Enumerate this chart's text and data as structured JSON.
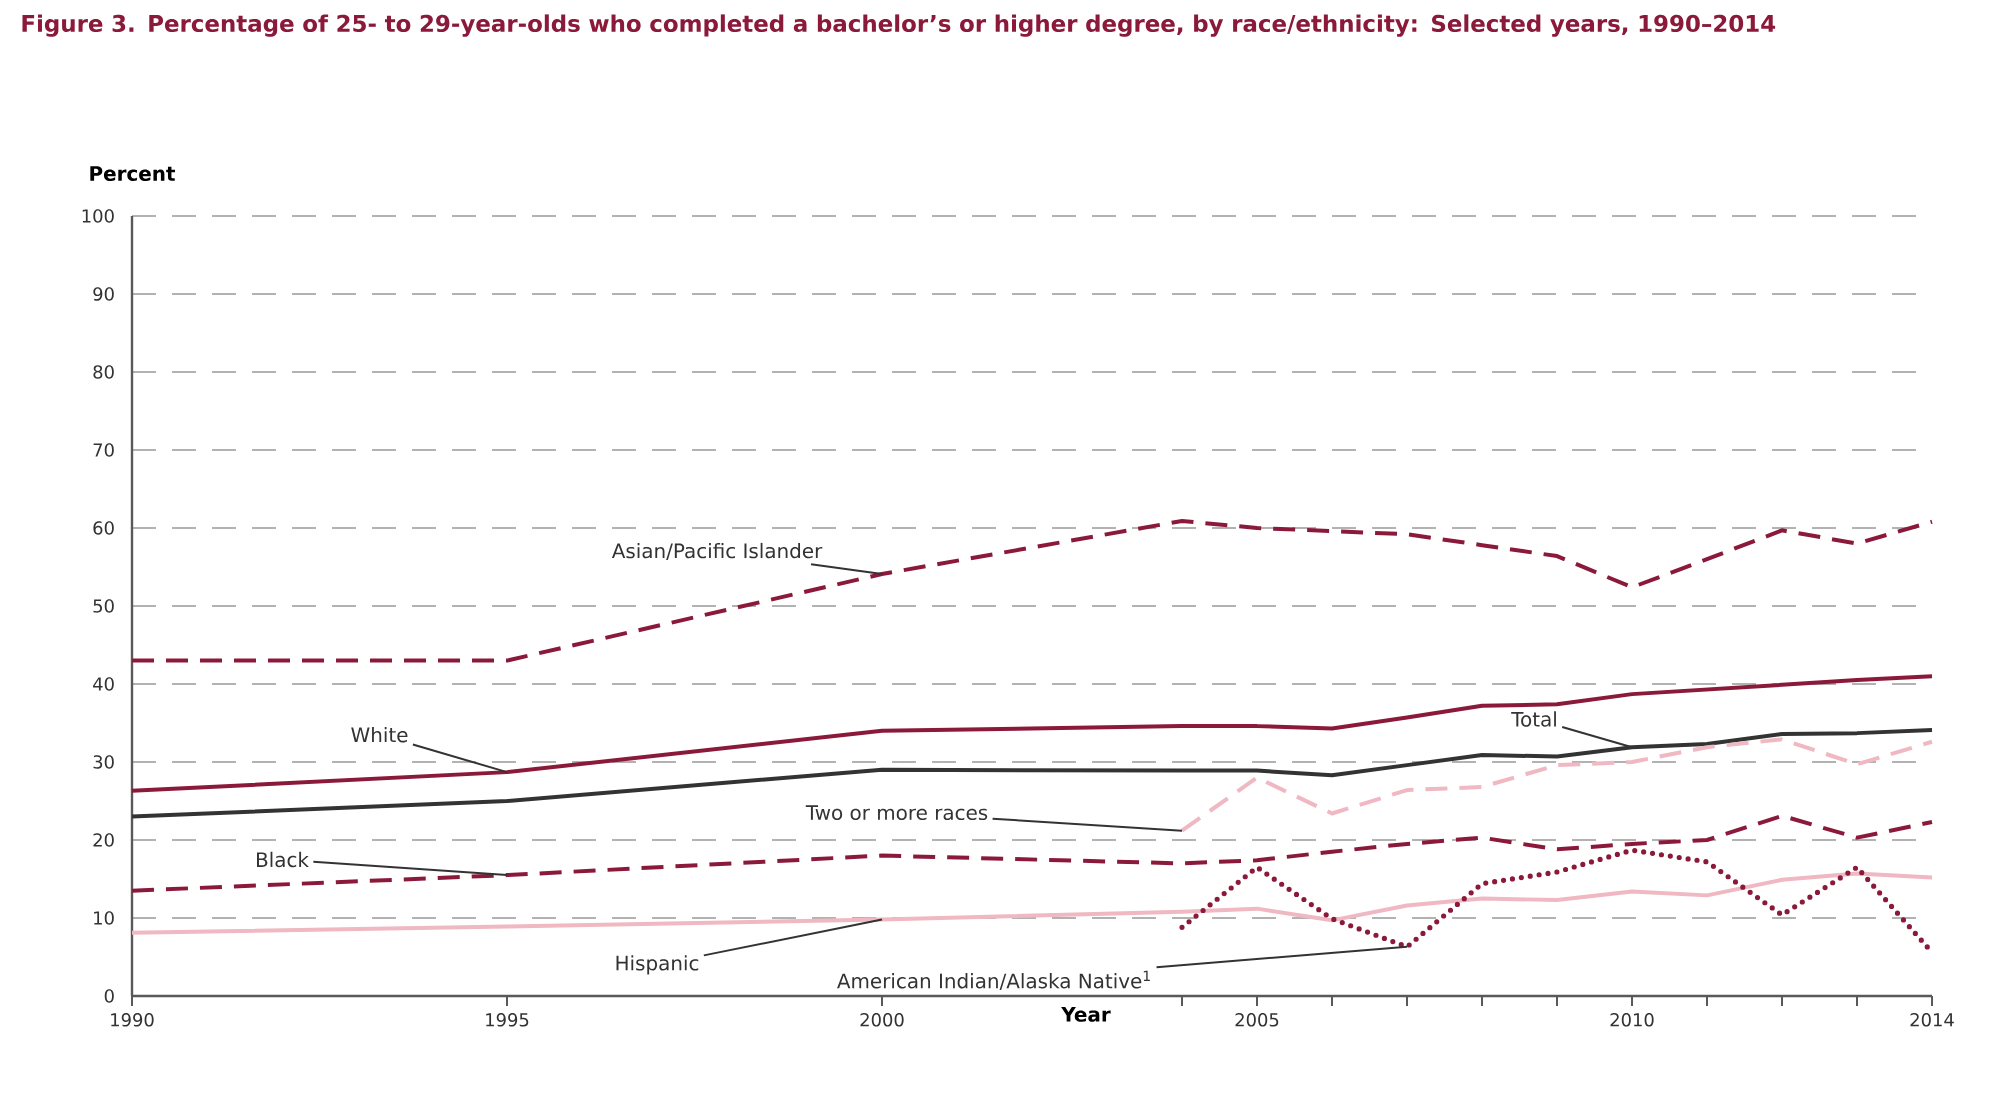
{
  "chart_data": {
    "type": "line",
    "title": "Figure 3.  Percentage of 25- to 29-year-olds who completed a bachelor’s or higher degree, by race/ethnicity: Selected years, 1990–2014",
    "xlabel": "Year",
    "ylabel": "Percent",
    "xlim": [
      1990,
      2014
    ],
    "ylim": [
      0,
      100
    ],
    "xticks": [
      1990,
      1995,
      2000,
      {
        "value": 2004,
        "label": null
      },
      2005,
      {
        "value": 2006,
        "label": null
      },
      {
        "value": 2007,
        "label": null
      },
      {
        "value": 2008,
        "label": null
      },
      {
        "value": 2009,
        "label": null
      },
      2010,
      {
        "value": 2011,
        "label": null
      },
      {
        "value": 2012,
        "label": null
      },
      {
        "value": 2013,
        "label": null
      },
      2014
    ],
    "yticks": [
      0,
      10,
      20,
      30,
      40,
      50,
      60,
      70,
      80,
      90,
      100
    ],
    "grid": "y",
    "marker": "none",
    "series": [
      {
        "name": "Total",
        "color": "#333333",
        "line_style": "solid",
        "x": [
          1990,
          1995,
          2000,
          2004,
          2005,
          2006,
          2007,
          2008,
          2009,
          2010,
          2011,
          2012,
          2013,
          2014
        ],
        "values": [
          23,
          25,
          29,
          28.9,
          28.9,
          28.3,
          29.6,
          30.9,
          30.7,
          31.9,
          32.3,
          33.6,
          33.7,
          34.1
        ]
      },
      {
        "name": "White",
        "color": "#8b1a3a",
        "line_style": "solid",
        "x": [
          1990,
          1995,
          2000,
          2004,
          2005,
          2006,
          2007,
          2008,
          2009,
          2010,
          2011,
          2012,
          2013,
          2014
        ],
        "values": [
          26.3,
          28.7,
          34,
          34.6,
          34.6,
          34.3,
          35.7,
          37.2,
          37.4,
          38.7,
          39.3,
          39.9,
          40.5,
          41
        ]
      },
      {
        "name": "Black",
        "color": "#8b1a3a",
        "line_style": "dashed",
        "x": [
          1990,
          1995,
          2000,
          2004,
          2005,
          2006,
          2007,
          2008,
          2009,
          2010,
          2011,
          2012,
          2013,
          2014
        ],
        "values": [
          13.5,
          15.5,
          18,
          17,
          17.4,
          18.5,
          19.5,
          20.3,
          18.8,
          19.5,
          20,
          23.1,
          20.3,
          22.3
        ]
      },
      {
        "name": "Hispanic",
        "color": "#efb8c2",
        "line_style": "solid",
        "x": [
          1990,
          1995,
          2000,
          2004,
          2005,
          2006,
          2007,
          2008,
          2009,
          2010,
          2011,
          2012,
          2013,
          2014
        ],
        "values": [
          8.1,
          8.9,
          9.8,
          10.8,
          11.2,
          9.7,
          11.6,
          12.5,
          12.3,
          13.4,
          12.9,
          14.9,
          15.7,
          15.2
        ]
      },
      {
        "name": "Asian/Pacific Islander",
        "color": "#8b1a3a",
        "line_style": "dashed",
        "x": [
          1990,
          1995,
          2000,
          2004,
          2005,
          2006,
          2007,
          2008,
          2009,
          2010,
          2011,
          2012,
          2013,
          2014
        ],
        "values": [
          43,
          43,
          54.1,
          60.9,
          60,
          59.6,
          59.2,
          57.8,
          56.4,
          52.4,
          56,
          59.7,
          58,
          60.8
        ]
      },
      {
        "name": "American Indian/Alaska Native$^{1}$",
        "color": "#8b1a3a",
        "line_style": "dotted",
        "x": [
          2004,
          2005,
          2006,
          2007,
          2008,
          2009,
          2010,
          2011,
          2012,
          2013,
          2014
        ],
        "values": [
          8.8,
          16.5,
          9.9,
          6.3,
          14.4,
          15.9,
          18.7,
          17.2,
          10.4,
          16.5,
          5.6
        ]
      },
      {
        "name": "Two or more races",
        "color": "#efb8c2",
        "line_style": "dashed",
        "x": [
          2004,
          2005,
          2006,
          2007,
          2008,
          2009,
          2010,
          2011,
          2012,
          2013,
          2014
        ],
        "values": [
          21.2,
          28,
          23.4,
          26.4,
          26.8,
          29.6,
          30,
          31.9,
          32.9,
          29.7,
          32.6
        ]
      }
    ]
  }
}
